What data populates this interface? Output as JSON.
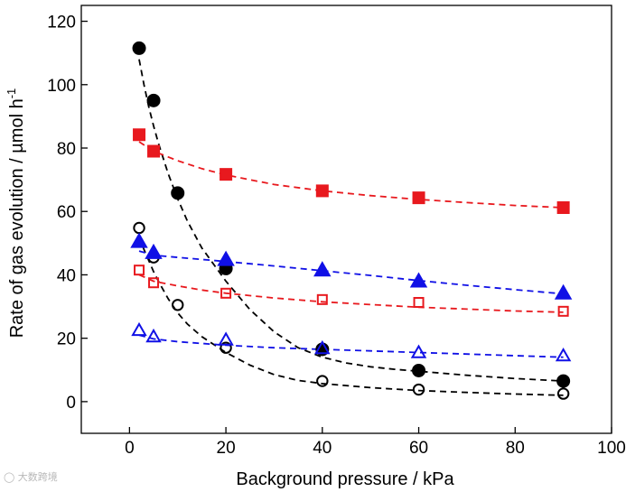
{
  "chart_data": {
    "type": "scatter",
    "title": "",
    "xlabel": "Background pressure / kPa",
    "ylabel_main": "Rate of gas evolution / µmol h",
    "ylabel_sup": "-1",
    "xlim": [
      -10,
      100
    ],
    "ylim": [
      -10,
      125
    ],
    "xticks": [
      0,
      20,
      40,
      60,
      80,
      100
    ],
    "yticks": [
      0,
      20,
      40,
      60,
      80,
      100,
      120
    ],
    "grid": false,
    "legend": "none",
    "series": [
      {
        "name": "black-filled-circle",
        "marker": "circle",
        "filled": true,
        "color": "#000000",
        "x": [
          2,
          5,
          10,
          20,
          40,
          60,
          90
        ],
        "y": [
          111.5,
          95,
          65.8,
          42,
          16.5,
          9.8,
          6.5
        ],
        "fit_x": [
          2,
          3,
          4,
          5,
          6,
          8,
          10,
          12,
          15,
          20,
          25,
          30,
          35,
          40,
          45,
          50,
          55,
          60,
          70,
          80,
          90
        ],
        "fit_y": [
          108,
          100,
          93,
          87,
          81.5,
          72,
          64,
          57,
          48.5,
          38,
          29,
          22,
          17,
          14,
          12.2,
          11,
          10.2,
          9.6,
          8.3,
          7.3,
          6.5
        ]
      },
      {
        "name": "black-open-circle",
        "marker": "circle",
        "filled": false,
        "color": "#000000",
        "x": [
          2,
          5,
          10,
          20,
          40,
          60,
          90
        ],
        "y": [
          54.8,
          45.5,
          30.5,
          17,
          6.5,
          3.8,
          2.5
        ],
        "fit_x": [
          2,
          3,
          4,
          5,
          6,
          8,
          10,
          12,
          15,
          20,
          25,
          30,
          35,
          40,
          50,
          60,
          70,
          80,
          90
        ],
        "fit_y": [
          52,
          48,
          44.5,
          41,
          38,
          32.5,
          28,
          24.5,
          20.5,
          15.5,
          11.5,
          8.5,
          6.7,
          5.7,
          4.4,
          3.5,
          2.9,
          2.4,
          2.0
        ]
      },
      {
        "name": "red-filled-square",
        "marker": "square",
        "filled": true,
        "color": "#e8191e",
        "x": [
          2,
          5,
          20,
          40,
          60,
          90
        ],
        "y": [
          84.2,
          79,
          71.7,
          66.5,
          64.3,
          61.2
        ],
        "fit_x": [
          2,
          5,
          10,
          15,
          20,
          30,
          40,
          50,
          60,
          70,
          80,
          90
        ],
        "fit_y": [
          82,
          79,
          76,
          73.5,
          71.5,
          68.5,
          66.5,
          65,
          63.8,
          62.8,
          61.9,
          61.2
        ]
      },
      {
        "name": "red-open-square",
        "marker": "square",
        "filled": false,
        "color": "#e8191e",
        "x": [
          2,
          5,
          20,
          40,
          60,
          90
        ],
        "y": [
          41.5,
          37.5,
          34.2,
          32.2,
          31.3,
          28.5
        ],
        "fit_x": [
          2,
          5,
          10,
          15,
          20,
          30,
          40,
          50,
          60,
          70,
          80,
          90
        ],
        "fit_y": [
          40,
          38,
          36.5,
          35.2,
          34.2,
          32.7,
          31.5,
          30.6,
          29.8,
          29.2,
          28.6,
          28.2
        ]
      },
      {
        "name": "blue-filled-triangle",
        "marker": "triangle",
        "filled": true,
        "color": "#1010e6",
        "x": [
          2,
          5,
          20,
          40,
          60,
          90
        ],
        "y": [
          50.5,
          47,
          44.8,
          41.5,
          38,
          34.2
        ],
        "fit_x": [
          2,
          5,
          10,
          20,
          30,
          40,
          50,
          60,
          70,
          80,
          90
        ],
        "fit_y": [
          47.5,
          46.2,
          45.5,
          44.2,
          42.8,
          41.3,
          39.8,
          38.2,
          36.7,
          35.3,
          34
        ]
      },
      {
        "name": "blue-open-triangle",
        "marker": "triangle",
        "filled": false,
        "color": "#1010e6",
        "x": [
          2,
          5,
          20,
          40,
          60,
          90
        ],
        "y": [
          22.5,
          20.5,
          19.5,
          16.8,
          15.5,
          14.5
        ],
        "fit_x": [
          2,
          5,
          10,
          20,
          30,
          40,
          50,
          60,
          70,
          80,
          90
        ],
        "fit_y": [
          21,
          19.8,
          18.9,
          17.8,
          17,
          16.5,
          16,
          15.5,
          15,
          14.5,
          14
        ]
      }
    ]
  }
}
